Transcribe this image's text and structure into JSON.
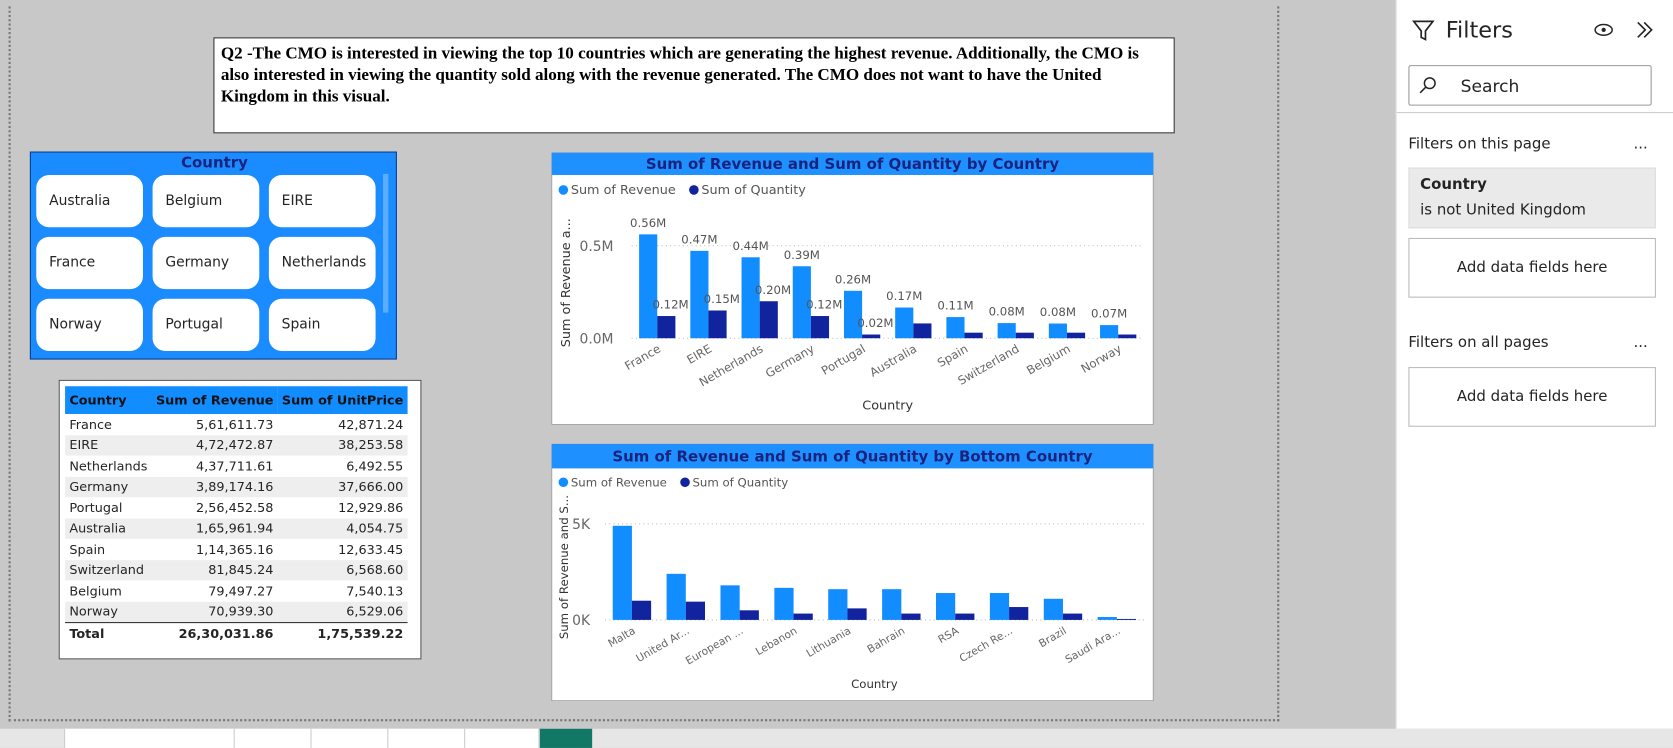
{
  "question": "Q2 -The CMO is interested in viewing the top 10 countries which are generating the highest revenue. Additionally, the CMO is also interested in viewing the quantity sold along with the revenue generated. The CMO does not want to have the United Kingdom in this visual.",
  "slicer": {
    "title": "Country",
    "items": [
      "Australia",
      "Belgium",
      "EIRE",
      "France",
      "Germany",
      "Netherlands",
      "Norway",
      "Portugal",
      "Spain"
    ]
  },
  "table": {
    "columns": [
      "Country",
      "Sum of Revenue",
      "Sum of UnitPrice"
    ],
    "rows": [
      [
        "France",
        "5,61,611.73",
        "42,871.24"
      ],
      [
        "EIRE",
        "4,72,472.87",
        "38,253.58"
      ],
      [
        "Netherlands",
        "4,37,711.61",
        "6,492.55"
      ],
      [
        "Germany",
        "3,89,174.16",
        "37,666.00"
      ],
      [
        "Portugal",
        "2,56,452.58",
        "12,929.86"
      ],
      [
        "Australia",
        "1,65,961.94",
        "4,054.75"
      ],
      [
        "Spain",
        "1,14,365.16",
        "12,633.45"
      ],
      [
        "Switzerland",
        "81,845.24",
        "6,568.60"
      ],
      [
        "Belgium",
        "79,497.27",
        "7,540.13"
      ],
      [
        "Norway",
        "70,939.30",
        "6,529.06"
      ]
    ],
    "total": [
      "Total",
      "26,30,031.86",
      "1,75,539.22"
    ]
  },
  "chart_data": [
    {
      "type": "bar",
      "title": "Sum of Revenue and Sum of Quantity by Country",
      "x_label": "Country",
      "y_label": "Sum of Revenue a...",
      "categories": [
        "France",
        "EIRE",
        "Netherlands",
        "Germany",
        "Portugal",
        "Australia",
        "Spain",
        "Switzerland",
        "Belgium",
        "Norway"
      ],
      "series": [
        {
          "name": "Sum of Revenue",
          "color": "#118dff",
          "values": [
            561611.73,
            472472.87,
            437711.61,
            389174.16,
            256452.58,
            165961.94,
            114365.16,
            81845.24,
            79497.27,
            70939.3
          ],
          "value_labels": [
            "0.56M",
            "0.47M",
            "0.44M",
            "0.39M",
            "0.26M",
            "0.17M",
            "0.11M",
            "0.08M",
            "0.08M",
            "0.07M"
          ]
        },
        {
          "name": "Sum of Quantity",
          "color": "#12239e",
          "values": [
            120000,
            150000,
            200000,
            120000,
            20000,
            80000,
            30000,
            30000,
            30000,
            20000
          ],
          "value_labels": [
            "0.12M",
            "0.15M",
            "0.20M",
            "0.12M",
            "0.02M",
            null,
            null,
            null,
            null,
            null
          ]
        }
      ],
      "ylim": [
        0,
        600000
      ],
      "yticks": [
        {
          "value": 0,
          "label": "0.0M"
        },
        {
          "value": 500000,
          "label": "0.5M"
        }
      ],
      "grid": true
    },
    {
      "type": "bar",
      "title": "Sum of Revenue and Sum of Quantity by Bottom Country",
      "x_label": "Country",
      "y_label": "Sum of Revenue and S...",
      "categories": [
        "Malta",
        "United Ar...",
        "European ...",
        "Lebanon",
        "Lithuania",
        "Bahrain",
        "RSA",
        "Czech Re...",
        "Brazil",
        "Saudi Ara..."
      ],
      "series": [
        {
          "name": "Sum of Revenue",
          "color": "#118dff",
          "values": [
            4900,
            2400,
            1800,
            1670,
            1600,
            1600,
            1400,
            1400,
            1100,
            150
          ]
        },
        {
          "name": "Sum of Quantity",
          "color": "#12239e",
          "values": [
            1000,
            950,
            500,
            330,
            600,
            330,
            330,
            670,
            330,
            50
          ]
        }
      ],
      "ylim": [
        0,
        5500
      ],
      "yticks": [
        {
          "value": 0,
          "label": "0K"
        },
        {
          "value": 5000,
          "label": "5K"
        }
      ],
      "grid": true
    }
  ],
  "filters": {
    "title": "Filters",
    "search": "Search",
    "page_section": "Filters on this page",
    "more": "...",
    "filter_field": "Country",
    "filter_condition": "is not United Kingdom",
    "add_fields": "Add data fields here",
    "all_section": "Filters on all pages"
  }
}
